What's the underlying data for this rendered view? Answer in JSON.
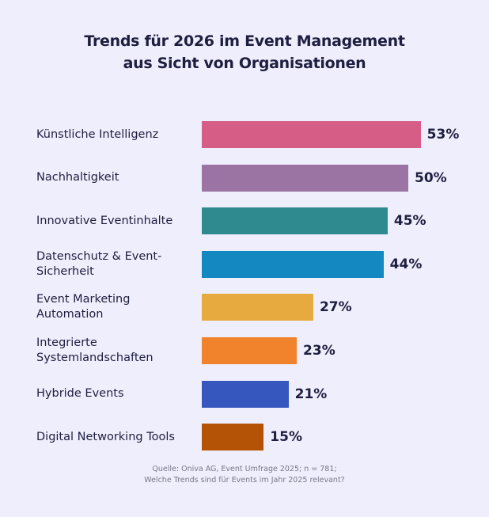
{
  "chart_data": {
    "type": "bar",
    "orientation": "horizontal",
    "title": "Trends für 2026 im Event Management\naus Sicht von Organisationen",
    "categories": [
      "Künstliche Intelligenz",
      "Nachhaltigkeit",
      "Innovative Eventinhalte",
      "Datenschutz & Event-\nSicherheit",
      "Event Marketing\nAutomation",
      "Integrierte\nSystemlandschaften",
      "Hybride Events",
      "Digital Networking Tools"
    ],
    "values": [
      53,
      50,
      45,
      44,
      27,
      23,
      21,
      15
    ],
    "value_labels": [
      "53%",
      "50%",
      "45%",
      "44%",
      "27%",
      "23%",
      "21%",
      "15%"
    ],
    "colors": [
      "#d65d86",
      "#9b74a4",
      "#2f8a90",
      "#1489c1",
      "#e7aa3f",
      "#f0832b",
      "#3557be",
      "#b45306"
    ],
    "source": "Quelle: Oniva AG, Event Umfrage 2025; n = 781;\nWelche Trends sind für Events im Jahr 2025 relevant?"
  }
}
